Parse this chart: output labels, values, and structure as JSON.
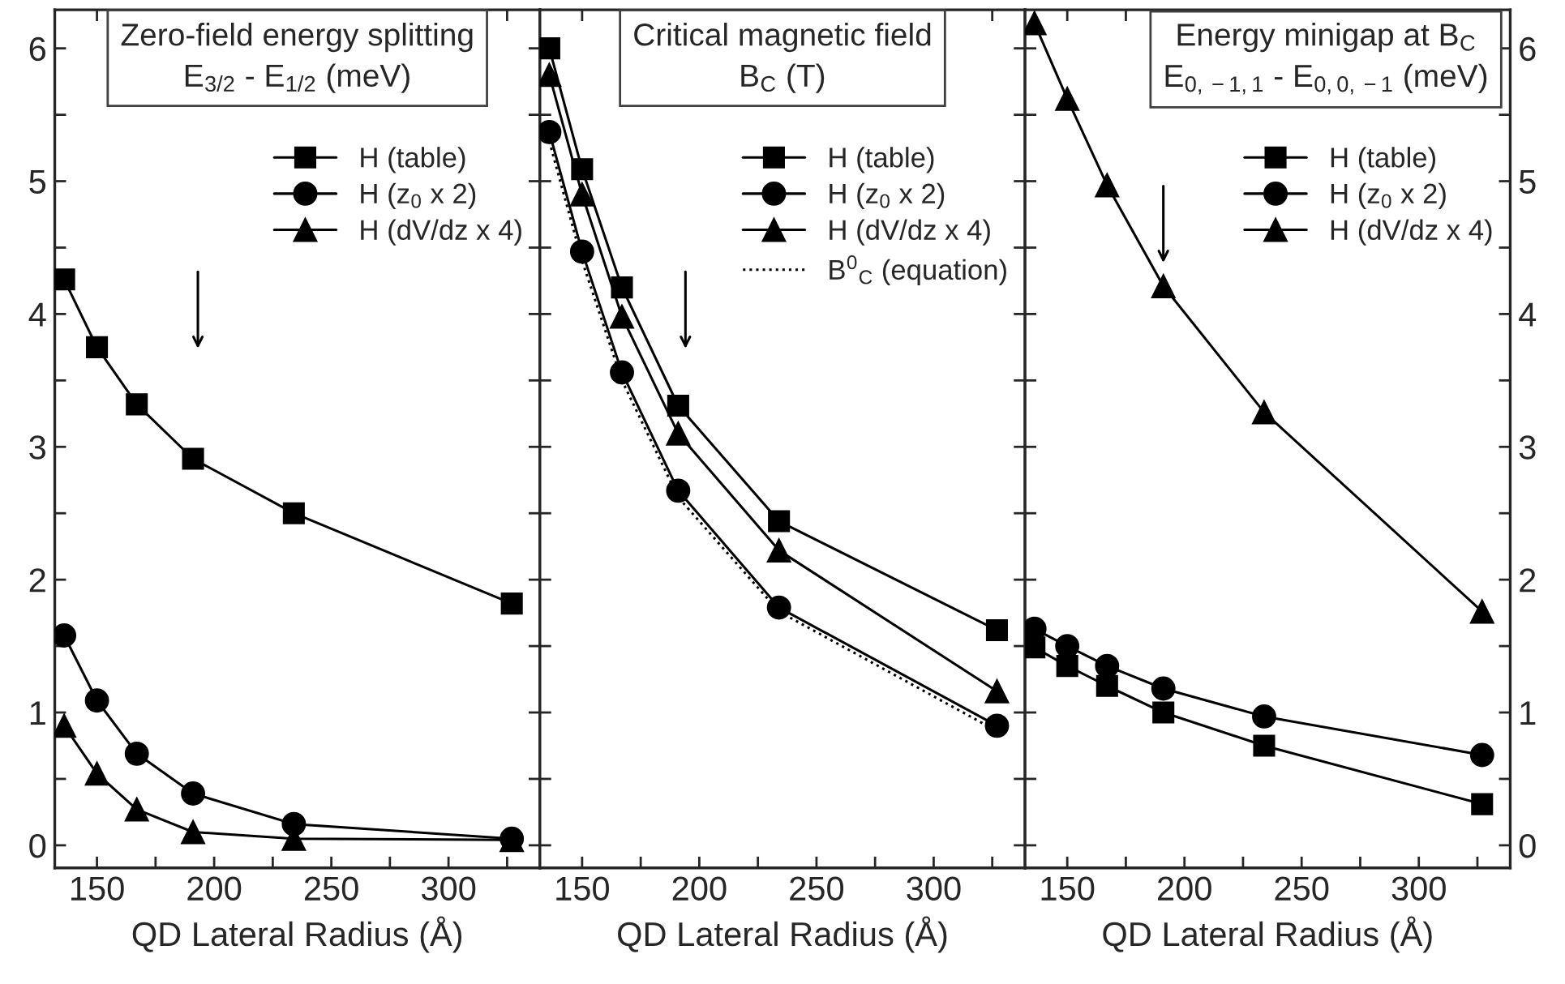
{
  "chart_data": [
    {
      "type": "line",
      "title": "Zero-field energy splitting\nE$_{3/2}$ - E$_{1/2}$ (meV)",
      "xlabel": "QD Lateral Radius (Å)",
      "x": [
        136,
        150,
        167,
        191,
        234,
        327
      ],
      "series": [
        {
          "name": "H (table)",
          "color": "#000000",
          "marker": "square",
          "values": [
            4.26,
            3.75,
            3.32,
            2.91,
            2.5,
            1.82
          ]
        },
        {
          "name": "H (z$_{0}$ x 2)",
          "color": "#000000",
          "marker": "circle",
          "values": [
            1.58,
            1.09,
            0.69,
            0.39,
            0.16,
            0.05
          ]
        },
        {
          "name": "H (dV/dz x 4)",
          "color": "#000000",
          "marker": "triangle",
          "values": [
            0.9,
            0.54,
            0.27,
            0.1,
            0.05,
            0.04
          ]
        }
      ],
      "xlim": [
        132,
        339
      ],
      "ylim": [
        -0.17,
        6.29
      ],
      "xticks": [
        150,
        {
          "value": 175,
          "label": null
        },
        200,
        {
          "value": 225,
          "label": null
        },
        250,
        {
          "value": 275,
          "label": null
        },
        300,
        {
          "value": 325,
          "label": null
        }
      ],
      "yticks": [
        0,
        {
          "value": 0.5,
          "label": null
        },
        1,
        {
          "value": 1.5,
          "label": null
        },
        2,
        {
          "value": 2.5,
          "label": null
        },
        3,
        {
          "value": 3.5,
          "label": null
        },
        4,
        {
          "value": 4.5,
          "label": null
        },
        5,
        {
          "value": 5.5,
          "label": null
        },
        6
      ],
      "legend": "top right",
      "grid": false,
      "line_style": "solid"
    },
    {
      "type": "line",
      "title": "Critical magnetic field\nB$_{C}$ (T)",
      "xlabel": "QD Lateral Radius (Å)",
      "x": [
        136,
        150,
        167,
        191,
        234,
        327
      ],
      "series": [
        {
          "name": "H (table)",
          "color": "#000000",
          "marker": "square",
          "values": [
            6.0,
            5.09,
            4.2,
            3.31,
            2.44,
            1.62
          ]
        },
        {
          "name": "H (z$_{0}$ x 2)",
          "color": "#000000",
          "marker": "circle",
          "values": [
            5.37,
            4.47,
            3.56,
            2.67,
            1.79,
            0.9
          ]
        },
        {
          "name": "H (dV/dz x 4)",
          "color": "#000000",
          "marker": "triangle",
          "values": [
            5.8,
            4.9,
            3.98,
            3.1,
            2.22,
            1.16
          ]
        },
        {
          "name": "B$^{0}$$_{C}$ (equation)",
          "color": "#000000",
          "marker": "none",
          "line_style": "dotted",
          "values": [
            5.3,
            4.4,
            3.5,
            2.62,
            1.76,
            0.86
          ]
        }
      ],
      "xlim": [
        132,
        339
      ],
      "ylim": [
        -0.17,
        6.29
      ],
      "xticks": [
        150,
        {
          "value": 175,
          "label": null
        },
        200,
        {
          "value": 225,
          "label": null
        },
        250,
        {
          "value": 275,
          "label": null
        },
        300,
        {
          "value": 325,
          "label": null
        }
      ],
      "yticks": [
        0,
        {
          "value": 0.5,
          "label": null
        },
        1,
        {
          "value": 1.5,
          "label": null
        },
        2,
        {
          "value": 2.5,
          "label": null
        },
        3,
        {
          "value": 3.5,
          "label": null
        },
        4,
        {
          "value": 4.5,
          "label": null
        },
        5,
        {
          "value": 5.5,
          "label": null
        },
        6
      ],
      "tick_labels": "x",
      "legend": "top right",
      "grid": false,
      "line_style": "solid"
    },
    {
      "type": "line",
      "title": "Energy minigap at B$_{C}$\nE$_{0,−1,1}$ - E$_{0,0,−1}$ (meV)",
      "xlabel": "QD Lateral Radius (Å)",
      "x": [
        136,
        150,
        167,
        191,
        234,
        327
      ],
      "series": [
        {
          "name": "H (table)",
          "color": "#000000",
          "marker": "square",
          "values": [
            1.49,
            1.35,
            1.2,
            1.0,
            0.75,
            0.31
          ]
        },
        {
          "name": "H (z$_{0}$ x 2)",
          "color": "#000000",
          "marker": "circle",
          "values": [
            1.63,
            1.5,
            1.35,
            1.18,
            0.97,
            0.68
          ]
        },
        {
          "name": "H (dV/dz x 4)",
          "color": "#000000",
          "marker": "triangle",
          "values": [
            6.19,
            5.62,
            4.97,
            4.21,
            3.26,
            1.76
          ]
        }
      ],
      "xlim": [
        132,
        339
      ],
      "ylim": [
        -0.17,
        6.29
      ],
      "xticks": [
        150,
        {
          "value": 175,
          "label": null
        },
        200,
        {
          "value": 225,
          "label": null
        },
        250,
        {
          "value": 275,
          "label": null
        },
        300,
        {
          "value": 325,
          "label": null
        }
      ],
      "yticks": [
        0,
        {
          "value": 0.5,
          "label": null
        },
        1,
        {
          "value": 1.5,
          "label": null
        },
        2,
        {
          "value": 2.5,
          "label": null
        },
        3,
        {
          "value": 3.5,
          "label": null
        },
        4,
        {
          "value": 4.5,
          "label": null
        },
        5,
        {
          "value": 5.5,
          "label": null
        },
        6
      ],
      "legend": "top right",
      "grid": false,
      "line_style": "solid"
    }
  ]
}
